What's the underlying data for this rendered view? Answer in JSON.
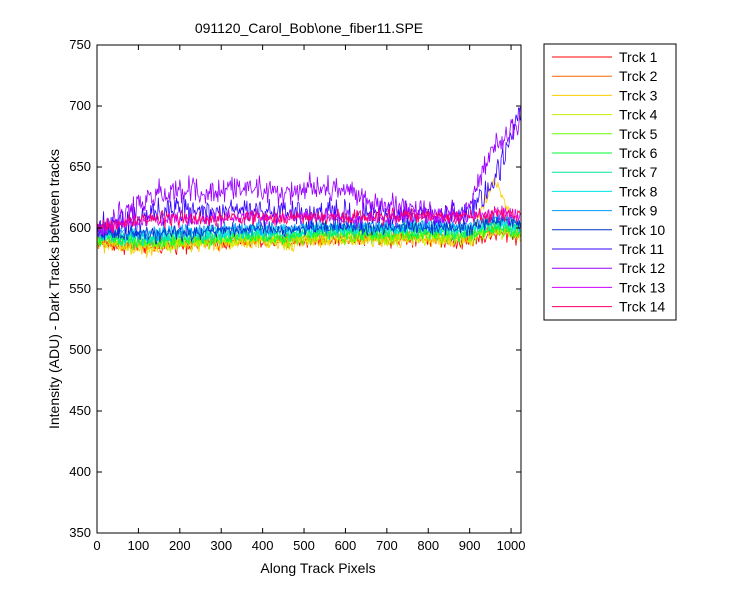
{
  "chart_data": {
    "type": "line",
    "title": "091120_Carol_Bob\\one_fiber11.SPE",
    "xlabel": "Along Track Pixels",
    "ylabel": "Intensity (ADU) - Dark Tracks between tracks",
    "xlim": [
      0,
      1024
    ],
    "ylim": [
      350,
      750
    ],
    "xticks": [
      0,
      100,
      200,
      300,
      400,
      500,
      600,
      700,
      800,
      900,
      1000
    ],
    "yticks": [
      350,
      400,
      450,
      500,
      550,
      600,
      650,
      700,
      750
    ],
    "grid": false,
    "legend_position": "outside-top-right",
    "x_step": 64,
    "series": [
      {
        "name": "Trck 1",
        "color": "#ff0000",
        "values": [
          588,
          585,
          584,
          586,
          587,
          588,
          589,
          588,
          590,
          591,
          592,
          591,
          592,
          590,
          589,
          595,
          593
        ]
      },
      {
        "name": "Trck 2",
        "color": "#ff6600",
        "values": [
          590,
          587,
          586,
          588,
          589,
          590,
          591,
          590,
          592,
          593,
          593,
          592,
          594,
          593,
          592,
          597,
          595
        ]
      },
      {
        "name": "Trck 3",
        "color": "#ffcc00",
        "values": [
          586,
          584,
          583,
          585,
          586,
          587,
          588,
          587,
          589,
          590,
          590,
          589,
          591,
          590,
          589,
          640,
          592
        ]
      },
      {
        "name": "Trck 4",
        "color": "#ccee00",
        "values": [
          589,
          586,
          585,
          587,
          588,
          589,
          590,
          589,
          591,
          592,
          592,
          591,
          593,
          592,
          591,
          597,
          594
        ]
      },
      {
        "name": "Trck 5",
        "color": "#66ff00",
        "values": [
          591,
          588,
          587,
          589,
          590,
          591,
          592,
          591,
          593,
          594,
          594,
          593,
          595,
          594,
          593,
          599,
          596
        ]
      },
      {
        "name": "Trck 6",
        "color": "#00ff33",
        "values": [
          593,
          590,
          589,
          591,
          592,
          593,
          594,
          593,
          595,
          596,
          596,
          595,
          597,
          596,
          595,
          601,
          598
        ]
      },
      {
        "name": "Trck 7",
        "color": "#00e699",
        "values": [
          594,
          592,
          591,
          593,
          594,
          595,
          596,
          595,
          597,
          598,
          598,
          597,
          599,
          598,
          597,
          603,
          600
        ]
      },
      {
        "name": "Trck 8",
        "color": "#00e6e6",
        "values": [
          596,
          594,
          593,
          595,
          596,
          597,
          598,
          597,
          599,
          600,
          600,
          599,
          601,
          600,
          599,
          605,
          602
        ]
      },
      {
        "name": "Trck 9",
        "color": "#0099ff",
        "values": [
          598,
          596,
          595,
          597,
          598,
          599,
          600,
          599,
          601,
          602,
          602,
          601,
          603,
          602,
          601,
          607,
          604
        ]
      },
      {
        "name": "Trck 10",
        "color": "#0033cc",
        "values": [
          597,
          595,
          594,
          596,
          597,
          598,
          599,
          598,
          600,
          601,
          601,
          600,
          602,
          601,
          600,
          606,
          603
        ]
      },
      {
        "name": "Trck 11",
        "color": "#3300ff",
        "values": [
          598,
          604,
          610,
          615,
          612,
          613,
          614,
          615,
          613,
          612,
          610,
          609,
          611,
          610,
          612,
          640,
          698
        ]
      },
      {
        "name": "Trck 12",
        "color": "#9900ff",
        "values": [
          596,
          612,
          624,
          630,
          628,
          632,
          632,
          628,
          634,
          630,
          626,
          618,
          614,
          612,
          616,
          665,
          690
        ]
      },
      {
        "name": "Trck 13",
        "color": "#cc00ff",
        "values": [
          598,
          603,
          607,
          608,
          607,
          608,
          609,
          608,
          609,
          609,
          608,
          608,
          609,
          608,
          608,
          612,
          609
        ]
      },
      {
        "name": "Trck 14",
        "color": "#ff0066",
        "values": [
          600,
          604,
          607,
          608,
          607,
          608,
          609,
          608,
          609,
          610,
          609,
          609,
          610,
          609,
          609,
          612,
          610
        ]
      }
    ]
  }
}
